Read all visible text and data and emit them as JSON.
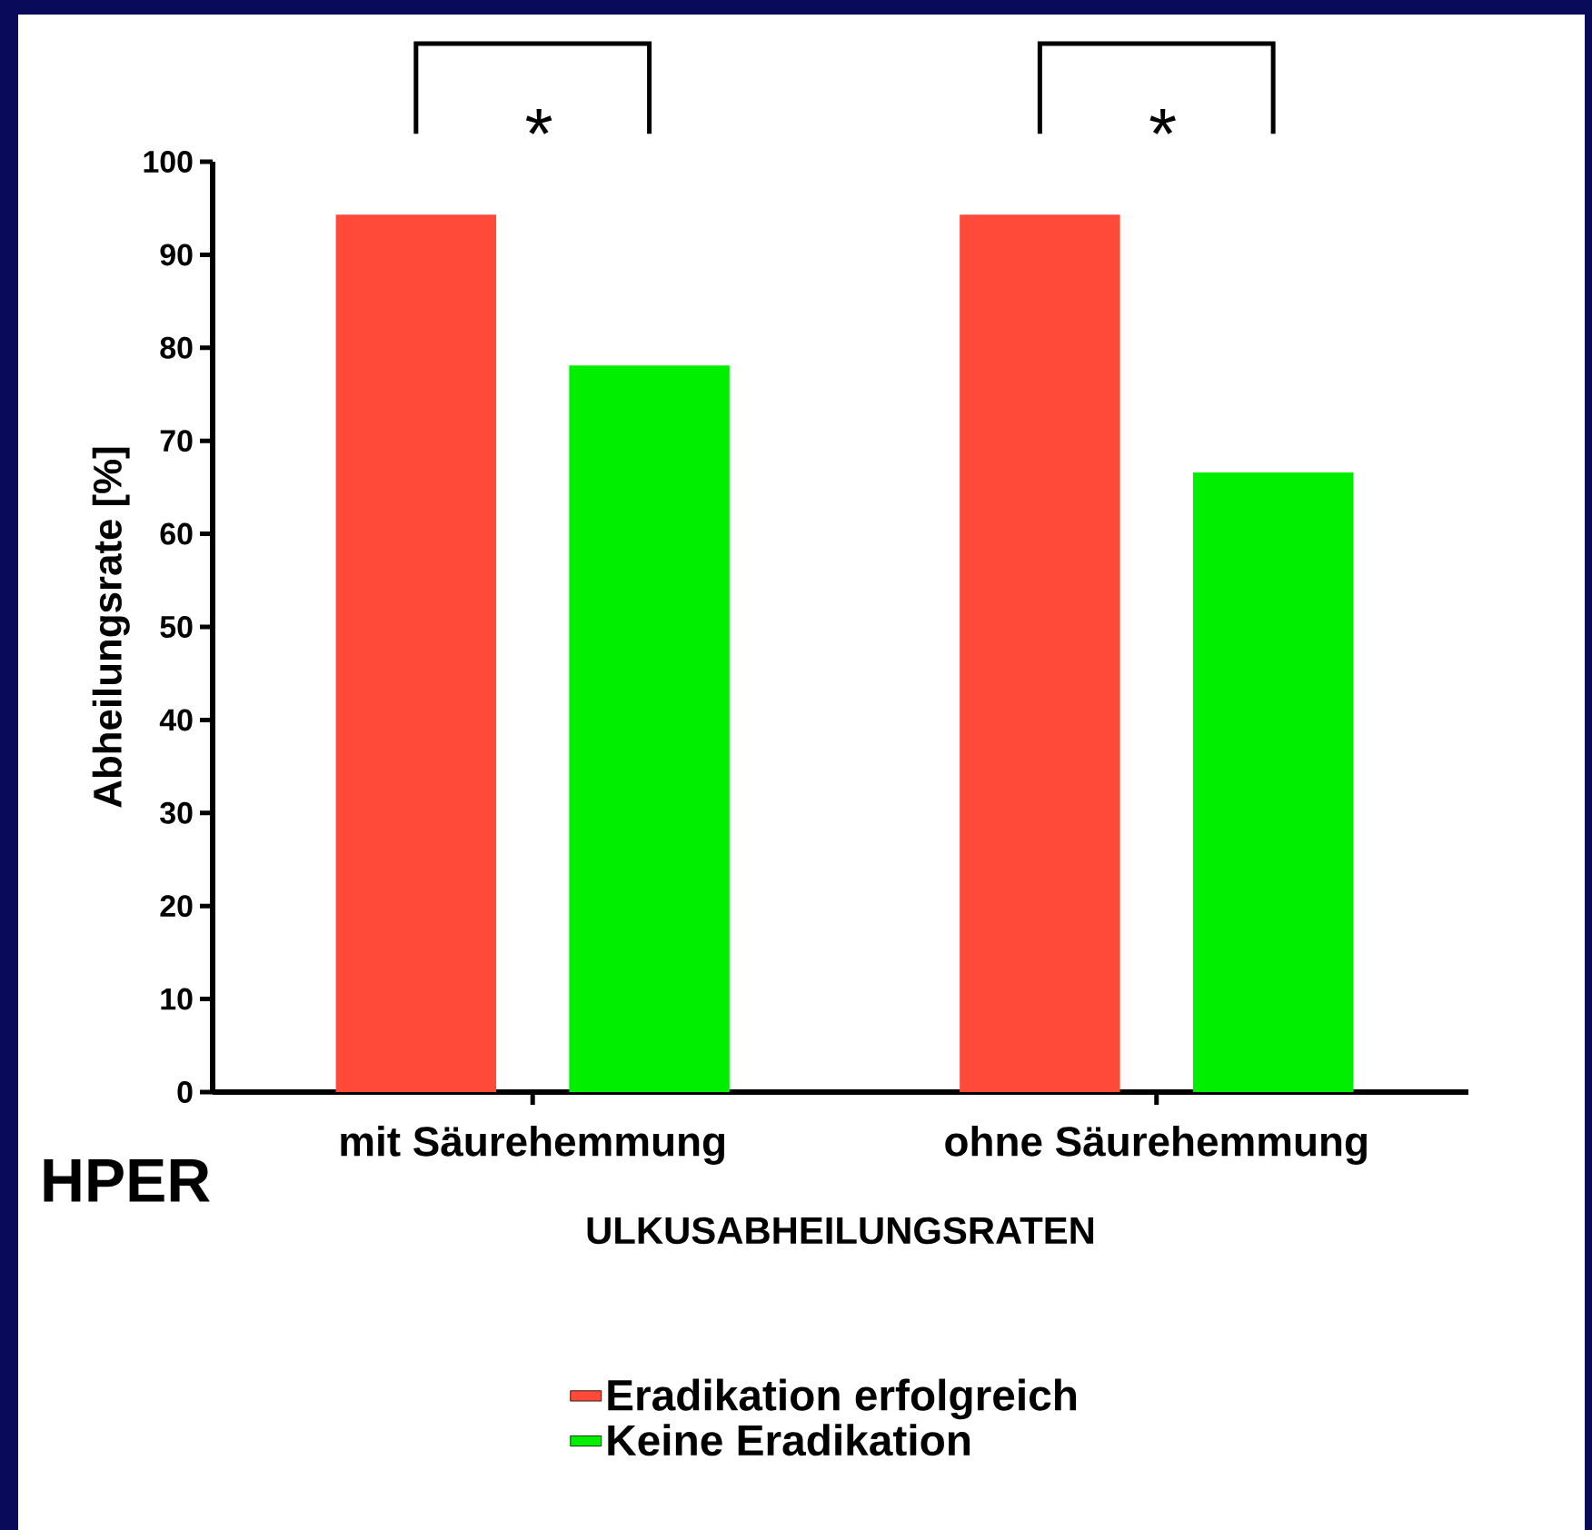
{
  "chart_data": {
    "type": "bar",
    "xlabel": "ULKUSABHEILUNGSRATEN",
    "ylabel": "Abheilungsrate  [%]",
    "categories": [
      "mit Säurehemmung",
      "ohne Säurehemmung"
    ],
    "series": [
      {
        "name": "Eradikation erfolgreich",
        "color": "#ff4a3a",
        "values": [
          94.3,
          94.3
        ]
      },
      {
        "name": "Keine Eradikation",
        "color": "#00ee00",
        "values": [
          78.1,
          66.6
        ]
      }
    ],
    "ylim": [
      0,
      100
    ],
    "yticks": [
      0,
      10,
      20,
      30,
      40,
      50,
      60,
      70,
      80,
      90,
      100
    ],
    "annotations": [
      "*",
      "*",
      "HPER"
    ],
    "legend": "bottom",
    "grid": false
  }
}
